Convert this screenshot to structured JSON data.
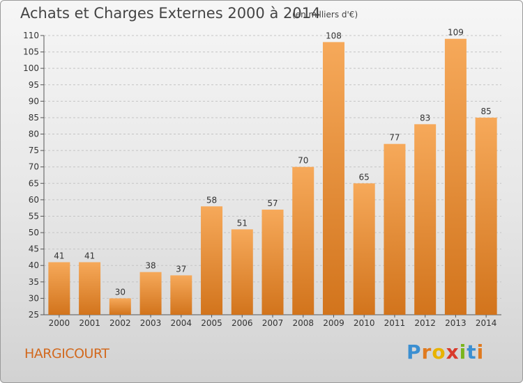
{
  "chart_data": {
    "type": "bar",
    "title": "Achats et Charges Externes 2000 à 2014",
    "subtitle": "(en milliers d'€)",
    "categories": [
      "2000",
      "2001",
      "2002",
      "2003",
      "2004",
      "2005",
      "2006",
      "2007",
      "2008",
      "2009",
      "2010",
      "2011",
      "2012",
      "2013",
      "2014"
    ],
    "values": [
      41,
      41,
      30,
      38,
      37,
      58,
      51,
      57,
      70,
      108,
      65,
      77,
      83,
      109,
      85
    ],
    "ylim": [
      25,
      110
    ],
    "yticks": [
      25,
      30,
      35,
      40,
      45,
      50,
      55,
      60,
      65,
      70,
      75,
      80,
      85,
      90,
      95,
      100,
      105,
      110
    ],
    "grid": true,
    "bar_color_top": "#f6a95a",
    "bar_color_bottom": "#d2741c"
  },
  "commune": "HARGICOURT",
  "logo": {
    "letters": [
      "P",
      "r",
      "o",
      "x",
      "i",
      "t",
      "i"
    ],
    "colors": [
      "#3b8fd1",
      "#e07a1f",
      "#e8b300",
      "#d93a2b",
      "#7ab51d",
      "#3b8fd1",
      "#e07a1f"
    ]
  }
}
